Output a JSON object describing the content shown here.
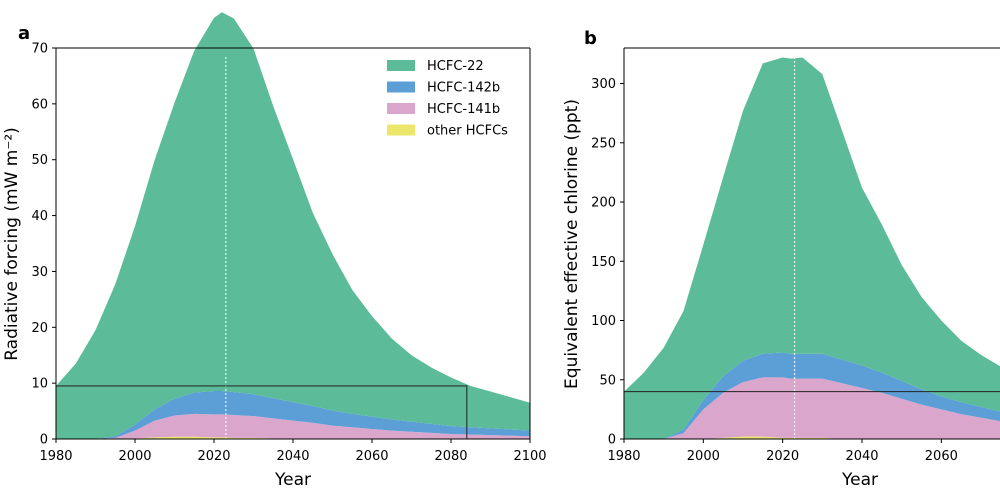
{
  "colors": {
    "hcfc22": "#5cbb98",
    "hcfc142b": "#5b9fd6",
    "hcfc141b": "#dba6cc",
    "other": "#ece76a"
  },
  "chart_data": [
    {
      "type": "area",
      "panel_label": "a",
      "xlabel": "Year",
      "ylabel": "Radiative forcing (mW m⁻²)",
      "xlim": [
        1980,
        2100
      ],
      "ylim": [
        0,
        70
      ],
      "xticks": [
        1980,
        2000,
        2020,
        2040,
        2060,
        2080,
        2100
      ],
      "yticks": [
        0,
        10,
        20,
        30,
        40,
        50,
        60,
        70
      ],
      "x": [
        1980,
        1985,
        1990,
        1995,
        2000,
        2005,
        2010,
        2015,
        2020,
        2022,
        2025,
        2030,
        2035,
        2040,
        2045,
        2050,
        2055,
        2060,
        2065,
        2070,
        2075,
        2080,
        2085,
        2090,
        2095,
        2100
      ],
      "series": [
        {
          "name": "other HCFCs",
          "color_key": "other",
          "values": [
            0,
            0,
            0,
            0,
            0.1,
            0.3,
            0.4,
            0.4,
            0.3,
            0.3,
            0.2,
            0.2,
            0.1,
            0.1,
            0.1,
            0,
            0,
            0,
            0,
            0,
            0,
            0,
            0,
            0,
            0,
            0
          ]
        },
        {
          "name": "HCFC-141b",
          "color_key": "hcfc141b",
          "values": [
            0,
            0,
            0,
            0.2,
            1.4,
            3.0,
            3.8,
            4.1,
            4.1,
            4.1,
            4.1,
            3.9,
            3.6,
            3.2,
            2.8,
            2.4,
            2.1,
            1.8,
            1.5,
            1.3,
            1.1,
            0.9,
            0.8,
            0.7,
            0.6,
            0.5
          ]
        },
        {
          "name": "HCFC-142b",
          "color_key": "hcfc142b",
          "values": [
            0,
            0,
            0,
            0.3,
            1.1,
            2.0,
            3.0,
            3.8,
            4.2,
            4.2,
            4.1,
            3.9,
            3.6,
            3.3,
            3.0,
            2.7,
            2.4,
            2.2,
            2.0,
            1.8,
            1.6,
            1.4,
            1.3,
            1.2,
            1.1,
            1.0
          ]
        },
        {
          "name": "HCFC-22",
          "color_key": "hcfc22",
          "values": [
            9.5,
            13.5,
            19.5,
            27.2,
            35.5,
            44.7,
            53.0,
            61.2,
            66.8,
            67.8,
            66.9,
            61.9,
            52.3,
            43.5,
            34.6,
            28.0,
            22.2,
            18.0,
            14.5,
            11.9,
            10.1,
            8.7,
            7.4,
            6.6,
            5.8,
            5.0
          ]
        }
      ],
      "vline_x": 2023,
      "box": {
        "x": [
          1980,
          2084
        ],
        "y": [
          0,
          9.5
        ]
      },
      "legend": {
        "position": "top-right",
        "entries": [
          "HCFC-22",
          "HCFC-142b",
          "HCFC-141b",
          "other HCFCs"
        ]
      }
    },
    {
      "type": "area",
      "panel_label": "b",
      "xlabel": "Year",
      "ylabel": "Equivalent effective chlorine (ppt)",
      "xlim": [
        1980,
        2100
      ],
      "ylim": [
        0,
        330
      ],
      "xticks": [
        1980,
        2000,
        2020,
        2040,
        2060
      ],
      "yticks": [
        0,
        50,
        100,
        150,
        200,
        250,
        300
      ],
      "x": [
        1980,
        1985,
        1990,
        1995,
        2000,
        2005,
        2010,
        2015,
        2020,
        2022,
        2025,
        2030,
        2035,
        2040,
        2045,
        2050,
        2055,
        2060,
        2065,
        2070,
        2075
      ],
      "series": [
        {
          "name": "other HCFCs",
          "color_key": "other",
          "values": [
            0,
            0,
            0,
            0,
            0,
            1,
            2,
            2,
            1,
            1,
            1,
            1,
            0,
            0,
            0,
            0,
            0,
            0,
            0,
            0,
            0
          ]
        },
        {
          "name": "HCFC-141b",
          "color_key": "hcfc141b",
          "values": [
            0,
            0,
            0,
            5,
            25,
            38,
            46,
            50,
            51,
            50,
            50,
            50,
            47,
            43,
            39,
            34,
            29,
            25,
            21,
            18,
            15
          ]
        },
        {
          "name": "HCFC-142b",
          "color_key": "hcfc142b",
          "values": [
            0,
            0,
            0,
            3,
            8,
            14,
            18,
            20,
            21,
            21,
            21,
            21,
            20,
            19,
            17,
            15,
            13,
            11,
            10,
            9,
            8
          ]
        },
        {
          "name": "HCFC-22",
          "color_key": "hcfc22",
          "values": [
            40,
            56,
            77,
            100,
            131,
            168,
            211,
            245,
            249,
            249,
            250,
            236,
            193,
            150,
            125,
            98,
            78,
            64,
            52,
            44,
            38
          ]
        }
      ],
      "vline_x": 2023,
      "hline_y": 40
    }
  ]
}
